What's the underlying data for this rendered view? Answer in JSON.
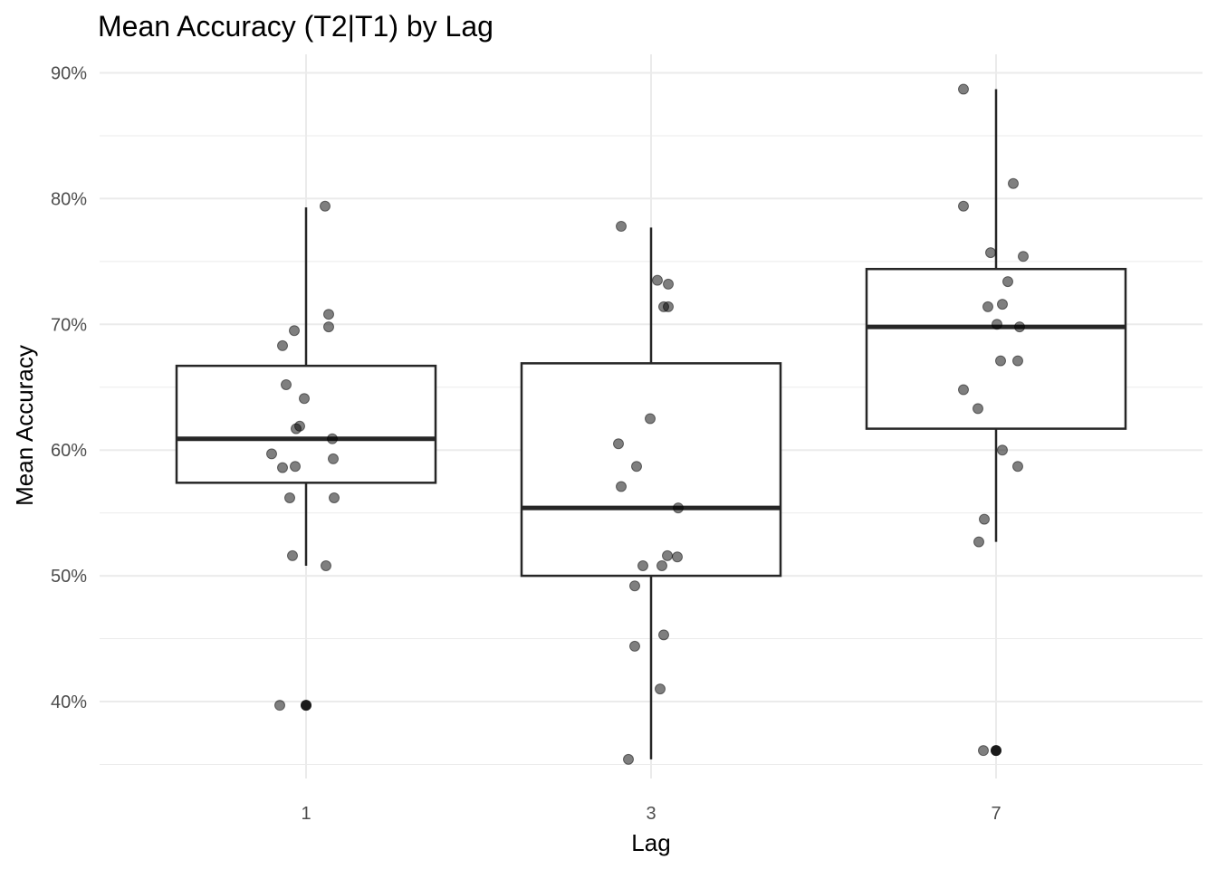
{
  "chart_data": {
    "type": "boxplot",
    "title": "Mean Accuracy (T2|T1) by Lag",
    "xlabel": "Lag",
    "ylabel": "Mean Accuracy",
    "categories": [
      "1",
      "3",
      "7"
    ],
    "y_ticks": [
      0.4,
      0.5,
      0.6,
      0.7,
      0.8,
      0.9
    ],
    "y_tick_labels": [
      "40%",
      "50%",
      "60%",
      "70%",
      "80%",
      "90%"
    ],
    "ylim": [
      0.33,
      0.93
    ],
    "grid": true,
    "colors": {
      "box": "#262626",
      "point": "#000000",
      "grid": "#ebebeb"
    },
    "boxes": [
      {
        "category": "1",
        "min": 0.508,
        "q1": 0.574,
        "median": 0.609,
        "q3": 0.667,
        "max": 0.793,
        "outliers": [
          0.397
        ]
      },
      {
        "category": "3",
        "min": 0.354,
        "q1": 0.5,
        "median": 0.554,
        "q3": 0.669,
        "max": 0.777,
        "outliers": []
      },
      {
        "category": "7",
        "min": 0.527,
        "q1": 0.617,
        "median": 0.698,
        "q3": 0.744,
        "max": 0.887,
        "outliers": [
          0.361
        ]
      }
    ],
    "points": [
      {
        "category": "1",
        "values": [
          0.794,
          0.708,
          0.698,
          0.695,
          0.683,
          0.652,
          0.641,
          0.619,
          0.617,
          0.609,
          0.597,
          0.593,
          0.587,
          0.586,
          0.562,
          0.562,
          0.516,
          0.508,
          0.397
        ]
      },
      {
        "category": "3",
        "values": [
          0.778,
          0.735,
          0.732,
          0.714,
          0.714,
          0.625,
          0.605,
          0.587,
          0.571,
          0.554,
          0.516,
          0.515,
          0.508,
          0.508,
          0.492,
          0.453,
          0.444,
          0.41,
          0.354
        ]
      },
      {
        "category": "7",
        "values": [
          0.887,
          0.812,
          0.794,
          0.757,
          0.754,
          0.734,
          0.716,
          0.714,
          0.7,
          0.698,
          0.671,
          0.671,
          0.648,
          0.633,
          0.6,
          0.587,
          0.545,
          0.527,
          0.361
        ]
      }
    ]
  }
}
